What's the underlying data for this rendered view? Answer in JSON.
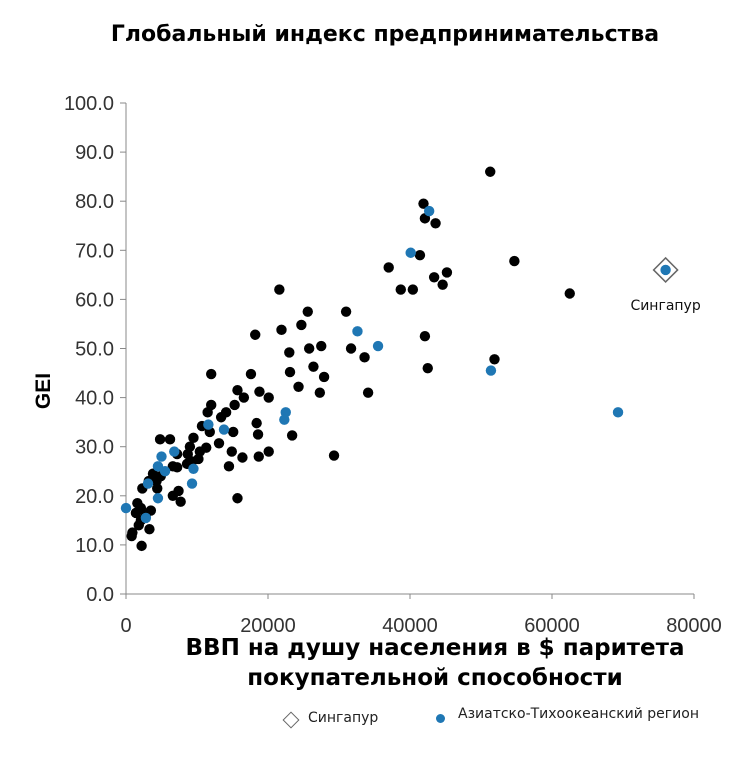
{
  "chart_data": {
    "type": "scatter",
    "title": "Глобальный индекс предпринимательства",
    "xlabel": "ВВП на душу населения в $ паритета покупательной способности",
    "ylabel": "GEI",
    "xlim": [
      0,
      80000
    ],
    "ylim": [
      0,
      100
    ],
    "x_ticks": [
      "0",
      "20000",
      "40000",
      "60000",
      "80000"
    ],
    "y_ticks": [
      "0.0",
      "10.0",
      "20.0",
      "30.0",
      "40.0",
      "50.0",
      "60.0",
      "70.0",
      "80.0",
      "90.0",
      "100.0"
    ],
    "grid": false,
    "legend_position": "bottom",
    "colors": {
      "other": "#000000",
      "asia_pacific": "#1f77b4",
      "singapore_marker": "#666666"
    },
    "annotation": {
      "text": "Сингапур",
      "x": 76000,
      "y": 66
    },
    "series": [
      {
        "name": "Сингапур",
        "marker": "diamond",
        "points": [
          [
            76000,
            66
          ]
        ]
      },
      {
        "name": "Азиатско-Тихоокеанский регион",
        "marker": "circle",
        "points": [
          [
            76000,
            66
          ],
          [
            42700,
            78
          ],
          [
            40100,
            69.5
          ],
          [
            32600,
            53.5
          ],
          [
            35500,
            50.5
          ],
          [
            51400,
            45.5
          ],
          [
            69300,
            37
          ],
          [
            22500,
            37
          ],
          [
            22300,
            35.5
          ],
          [
            13800,
            33.5
          ],
          [
            11600,
            34.5
          ],
          [
            6800,
            29
          ],
          [
            9500,
            25.5
          ],
          [
            5000,
            28
          ],
          [
            4500,
            26
          ],
          [
            5500,
            25
          ],
          [
            3100,
            22.5
          ],
          [
            9300,
            22.5
          ],
          [
            4500,
            19.5
          ],
          [
            2800,
            15.5
          ],
          [
            0,
            17.5
          ]
        ]
      },
      {
        "name": "",
        "marker": "circle",
        "points": [
          [
            51300,
            86
          ],
          [
            41900,
            79.5
          ],
          [
            42100,
            76.5
          ],
          [
            43600,
            75.5
          ],
          [
            41400,
            69
          ],
          [
            37000,
            66.5
          ],
          [
            54700,
            67.8
          ],
          [
            45200,
            65.5
          ],
          [
            43400,
            64.5
          ],
          [
            44600,
            63
          ],
          [
            38700,
            62
          ],
          [
            40400,
            62
          ],
          [
            62500,
            61.2
          ],
          [
            21600,
            62
          ],
          [
            25600,
            57.5
          ],
          [
            31000,
            57.5
          ],
          [
            24700,
            54.8
          ],
          [
            21900,
            53.8
          ],
          [
            18200,
            52.8
          ],
          [
            42100,
            52.5
          ],
          [
            31700,
            50
          ],
          [
            27500,
            50.5
          ],
          [
            25800,
            50
          ],
          [
            23000,
            49.2
          ],
          [
            33600,
            48.2
          ],
          [
            51900,
            47.8
          ],
          [
            26400,
            46.3
          ],
          [
            42500,
            46
          ],
          [
            23100,
            45.2
          ],
          [
            27900,
            44.2
          ],
          [
            12000,
            44.8
          ],
          [
            17600,
            44.8
          ],
          [
            24300,
            42.2
          ],
          [
            15700,
            41.5
          ],
          [
            18800,
            41.2
          ],
          [
            27300,
            41
          ],
          [
            34100,
            41
          ],
          [
            16600,
            40
          ],
          [
            20100,
            40
          ],
          [
            12000,
            38.5
          ],
          [
            15300,
            38.5
          ],
          [
            11500,
            37
          ],
          [
            14100,
            37
          ],
          [
            13400,
            36
          ],
          [
            18400,
            34.8
          ],
          [
            10700,
            34.2
          ],
          [
            11800,
            33
          ],
          [
            15100,
            33
          ],
          [
            18600,
            32.5
          ],
          [
            9500,
            31.8
          ],
          [
            6200,
            31.5
          ],
          [
            4800,
            31.5
          ],
          [
            23400,
            32.3
          ],
          [
            13100,
            30.7
          ],
          [
            9000,
            30
          ],
          [
            11300,
            29.8
          ],
          [
            14900,
            29
          ],
          [
            10400,
            29
          ],
          [
            20100,
            29
          ],
          [
            7200,
            28.5
          ],
          [
            8700,
            28.5
          ],
          [
            29300,
            28.2
          ],
          [
            16400,
            27.8
          ],
          [
            18700,
            28
          ],
          [
            10200,
            27.5
          ],
          [
            9300,
            27
          ],
          [
            8600,
            26.5
          ],
          [
            14500,
            26
          ],
          [
            6600,
            26
          ],
          [
            7200,
            25.8
          ],
          [
            3800,
            24.5
          ],
          [
            4900,
            24
          ],
          [
            4300,
            23
          ],
          [
            3200,
            23
          ],
          [
            2300,
            21.5
          ],
          [
            7400,
            21
          ],
          [
            4400,
            21.5
          ],
          [
            6600,
            20
          ],
          [
            7700,
            18.8
          ],
          [
            15700,
            19.5
          ],
          [
            1600,
            18.5
          ],
          [
            2100,
            17.5
          ],
          [
            3500,
            17
          ],
          [
            2800,
            16.2
          ],
          [
            1400,
            16.5
          ],
          [
            2100,
            15
          ],
          [
            1800,
            14
          ],
          [
            3300,
            13.2
          ],
          [
            900,
            12.5
          ],
          [
            800,
            11.8
          ],
          [
            2200,
            9.8
          ]
        ]
      }
    ]
  },
  "legend": {
    "singapore_label": "Сингапур",
    "asia_pacific_label": "Азиатско-Тихоокеанский регион"
  }
}
